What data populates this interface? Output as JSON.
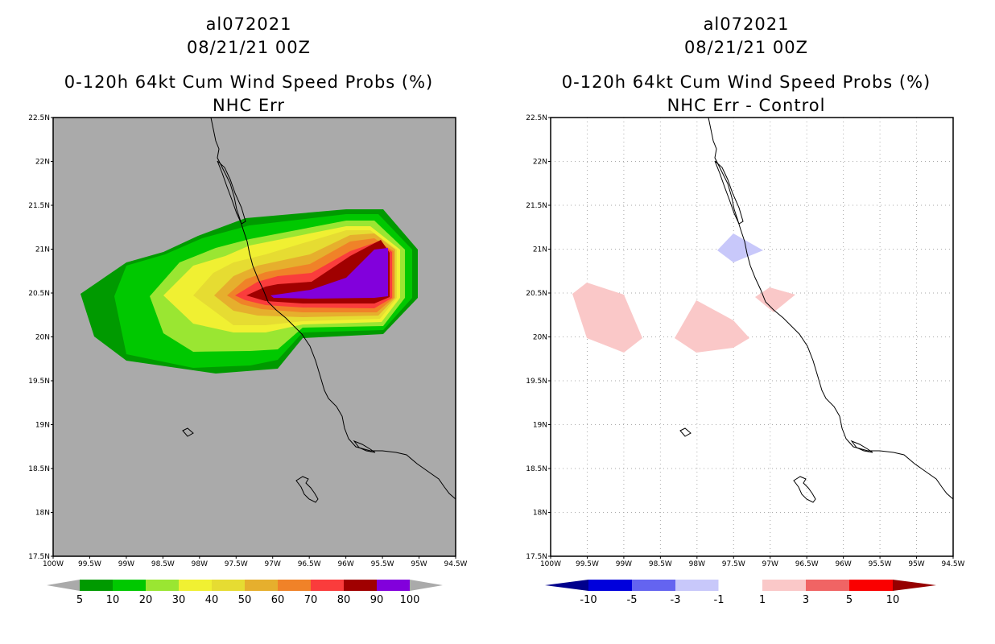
{
  "left_panel": {
    "storm_id": "al072021",
    "datetime": "08/21/21 00Z",
    "product": "0-120h 64kt Cum Wind Speed Probs (%)",
    "subtitle": "NHC Err",
    "background_color": "#aaaaaa",
    "legend": {
      "labels": [
        "5",
        "10",
        "20",
        "30",
        "40",
        "50",
        "60",
        "70",
        "80",
        "90",
        "100"
      ],
      "colors": [
        "#009a00",
        "#00c800",
        "#9ae632",
        "#f0f032",
        "#e6dc32",
        "#e6af2d",
        "#f08228",
        "#fa3c3c",
        "#a00000",
        "#8200dc"
      ],
      "under_color": "#aaaaaa",
      "over_color": "#aaaaaa"
    }
  },
  "right_panel": {
    "storm_id": "al072021",
    "datetime": "08/21/21 00Z",
    "product": "0-120h 64kt Cum Wind Speed Probs (%)",
    "subtitle": "NHC Err - Control",
    "background_color": "#ffffff",
    "legend": {
      "labels": [
        "-10",
        "-5",
        "-3",
        "-1",
        "1",
        "3",
        "5",
        "10"
      ],
      "colors": [
        "#0000dc",
        "#6464f0",
        "#c8c8fa",
        "#ffffff",
        "#fac8c8",
        "#f06464",
        "#fa0000"
      ],
      "under_color": "#00008c",
      "over_color": "#960000"
    }
  },
  "map": {
    "lon_labels": [
      "100W",
      "99.5W",
      "99W",
      "98.5W",
      "98W",
      "97.5W",
      "97W",
      "96.5W",
      "96W",
      "95.5W",
      "95W",
      "94.5W"
    ],
    "lat_labels": [
      "17.5N",
      "18N",
      "18.5N",
      "19N",
      "19.5N",
      "20N",
      "20.5N",
      "21N",
      "21.5N",
      "22N",
      "22.5N"
    ],
    "lon_range": [
      -100,
      -94.5
    ],
    "lat_range": [
      17.5,
      22.5
    ]
  }
}
